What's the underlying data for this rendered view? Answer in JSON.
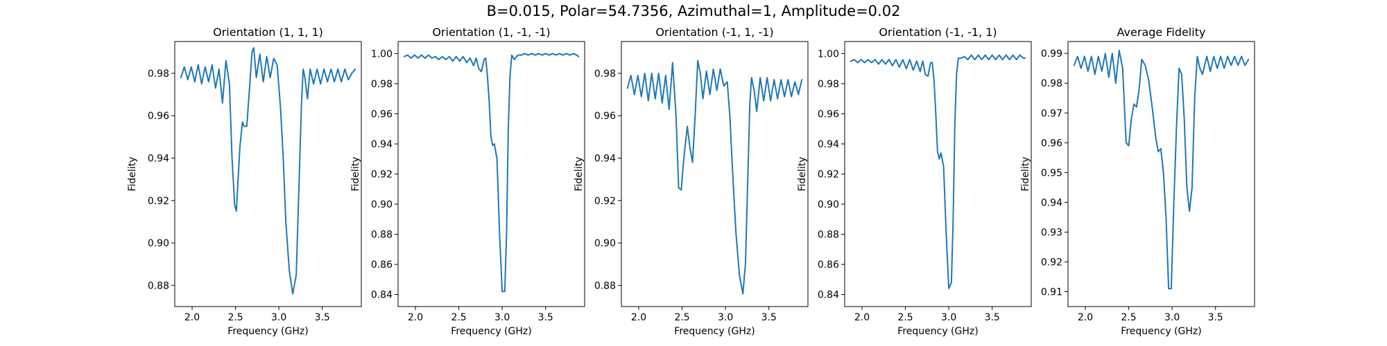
{
  "figure": {
    "suptitle": "B=0.015, Polar=54.7356, Azimuthal=1, Amplitude=0.02"
  },
  "chart_data": [
    {
      "type": "line",
      "title": "Orientation (1, 1, 1)",
      "xlabel": "Frequency (GHz)",
      "ylabel": "Fidelity",
      "xlim": [
        1.8,
        3.95
      ],
      "ylim": [
        0.87,
        0.995
      ],
      "xticks": [
        "2.0",
        "2.5",
        "3.0",
        "3.5"
      ],
      "yticks": [
        "0.88",
        "0.90",
        "0.92",
        "0.94",
        "0.96",
        "0.98"
      ],
      "grid": false,
      "series": [
        {
          "color": "#1f77b4",
          "x": [
            1.87,
            1.91,
            1.95,
            1.99,
            2.03,
            2.07,
            2.11,
            2.15,
            2.19,
            2.23,
            2.27,
            2.31,
            2.35,
            2.39,
            2.43,
            2.46,
            2.49,
            2.51,
            2.55,
            2.58,
            2.6,
            2.63,
            2.66,
            2.69,
            2.71,
            2.74,
            2.78,
            2.82,
            2.86,
            2.9,
            2.94,
            2.98,
            3.02,
            3.05,
            3.08,
            3.12,
            3.16,
            3.2,
            3.23,
            3.26,
            3.28,
            3.3,
            3.33,
            3.36,
            3.4,
            3.44,
            3.48,
            3.52,
            3.56,
            3.6,
            3.64,
            3.68,
            3.72,
            3.76,
            3.8,
            3.84,
            3.88
          ],
          "y": [
            0.978,
            0.983,
            0.977,
            0.983,
            0.976,
            0.984,
            0.975,
            0.983,
            0.976,
            0.984,
            0.973,
            0.982,
            0.966,
            0.986,
            0.975,
            0.94,
            0.918,
            0.915,
            0.945,
            0.957,
            0.955,
            0.955,
            0.972,
            0.99,
            0.992,
            0.978,
            0.989,
            0.976,
            0.988,
            0.978,
            0.987,
            0.984,
            0.963,
            0.94,
            0.91,
            0.887,
            0.876,
            0.885,
            0.925,
            0.965,
            0.982,
            0.978,
            0.968,
            0.982,
            0.975,
            0.982,
            0.975,
            0.982,
            0.976,
            0.982,
            0.976,
            0.982,
            0.976,
            0.982,
            0.977,
            0.98,
            0.982
          ]
        }
      ]
    },
    {
      "type": "line",
      "title": "Orientation (1, -1, -1)",
      "xlabel": "Frequency (GHz)",
      "ylabel": "Fidelity",
      "xlim": [
        1.8,
        3.95
      ],
      "ylim": [
        0.832,
        1.008
      ],
      "xticks": [
        "2.0",
        "2.5",
        "3.0",
        "3.5"
      ],
      "yticks": [
        "0.84",
        "0.86",
        "0.88",
        "0.90",
        "0.92",
        "0.94",
        "0.96",
        "0.98",
        "1.00"
      ],
      "grid": false,
      "series": [
        {
          "color": "#1f77b4",
          "x": [
            1.87,
            1.91,
            1.95,
            1.99,
            2.03,
            2.07,
            2.11,
            2.15,
            2.19,
            2.23,
            2.27,
            2.31,
            2.35,
            2.39,
            2.43,
            2.47,
            2.51,
            2.55,
            2.59,
            2.63,
            2.67,
            2.7,
            2.73,
            2.76,
            2.79,
            2.81,
            2.83,
            2.85,
            2.87,
            2.89,
            2.91,
            2.94,
            2.97,
            3.0,
            3.03,
            3.05,
            3.07,
            3.09,
            3.11,
            3.14,
            3.18,
            3.22,
            3.26,
            3.3,
            3.34,
            3.38,
            3.42,
            3.46,
            3.5,
            3.54,
            3.58,
            3.62,
            3.66,
            3.7,
            3.74,
            3.78,
            3.82,
            3.86,
            3.88
          ],
          "y": [
            0.998,
            0.999,
            0.997,
            0.999,
            0.997,
            0.999,
            0.997,
            0.999,
            0.997,
            0.998,
            0.996,
            0.998,
            0.996,
            0.998,
            0.995,
            0.998,
            0.995,
            0.998,
            0.994,
            0.997,
            0.992,
            0.997,
            0.99,
            0.988,
            0.996,
            0.997,
            0.985,
            0.968,
            0.945,
            0.939,
            0.94,
            0.93,
            0.88,
            0.842,
            0.842,
            0.88,
            0.95,
            0.985,
            0.999,
            0.996,
            0.999,
            0.999,
            1.0,
            0.999,
            1.0,
            0.999,
            1.0,
            0.999,
            1.0,
            0.999,
            1.0,
            0.999,
            1.0,
            0.999,
            1.0,
            0.999,
            1.0,
            0.999,
            0.998
          ]
        }
      ]
    },
    {
      "type": "line",
      "title": "Orientation (-1, 1, -1)",
      "xlabel": "Frequency (GHz)",
      "ylabel": "Fidelity",
      "xlim": [
        1.8,
        3.95
      ],
      "ylim": [
        0.87,
        0.995
      ],
      "xticks": [
        "2.0",
        "2.5",
        "3.0",
        "3.5"
      ],
      "yticks": [
        "0.88",
        "0.90",
        "0.92",
        "0.94",
        "0.96",
        "0.98"
      ],
      "grid": false,
      "series": [
        {
          "color": "#1f77b4",
          "x": [
            1.87,
            1.91,
            1.95,
            1.99,
            2.03,
            2.07,
            2.11,
            2.15,
            2.19,
            2.23,
            2.27,
            2.31,
            2.35,
            2.39,
            2.43,
            2.46,
            2.49,
            2.52,
            2.56,
            2.59,
            2.62,
            2.65,
            2.68,
            2.71,
            2.74,
            2.78,
            2.82,
            2.86,
            2.9,
            2.94,
            2.98,
            3.02,
            3.05,
            3.08,
            3.12,
            3.16,
            3.2,
            3.23,
            3.26,
            3.28,
            3.3,
            3.33,
            3.36,
            3.4,
            3.44,
            3.48,
            3.52,
            3.56,
            3.6,
            3.64,
            3.68,
            3.72,
            3.76,
            3.8,
            3.84,
            3.88
          ],
          "y": [
            0.973,
            0.979,
            0.97,
            0.979,
            0.969,
            0.98,
            0.967,
            0.98,
            0.968,
            0.98,
            0.966,
            0.979,
            0.963,
            0.985,
            0.96,
            0.926,
            0.925,
            0.94,
            0.955,
            0.945,
            0.938,
            0.96,
            0.986,
            0.98,
            0.968,
            0.981,
            0.97,
            0.982,
            0.972,
            0.982,
            0.974,
            0.976,
            0.96,
            0.935,
            0.905,
            0.885,
            0.876,
            0.89,
            0.935,
            0.965,
            0.978,
            0.972,
            0.962,
            0.978,
            0.967,
            0.978,
            0.967,
            0.977,
            0.968,
            0.977,
            0.969,
            0.977,
            0.969,
            0.976,
            0.97,
            0.977
          ]
        }
      ]
    },
    {
      "type": "line",
      "title": "Orientation (-1, -1, 1)",
      "xlabel": "Frequency (GHz)",
      "ylabel": "Fidelity",
      "xlim": [
        1.8,
        3.95
      ],
      "ylim": [
        0.832,
        1.008
      ],
      "xticks": [
        "2.0",
        "2.5",
        "3.0",
        "3.5"
      ],
      "yticks": [
        "0.84",
        "0.86",
        "0.88",
        "0.90",
        "0.92",
        "0.94",
        "0.96",
        "0.98",
        "1.00"
      ],
      "grid": false,
      "series": [
        {
          "color": "#1f77b4",
          "x": [
            1.87,
            1.91,
            1.95,
            1.99,
            2.03,
            2.07,
            2.11,
            2.15,
            2.19,
            2.23,
            2.27,
            2.31,
            2.35,
            2.39,
            2.43,
            2.47,
            2.51,
            2.55,
            2.59,
            2.63,
            2.67,
            2.7,
            2.73,
            2.76,
            2.79,
            2.81,
            2.83,
            2.85,
            2.87,
            2.89,
            2.91,
            2.94,
            2.97,
            3.0,
            3.03,
            3.05,
            3.07,
            3.09,
            3.11,
            3.14,
            3.18,
            3.22,
            3.26,
            3.3,
            3.34,
            3.38,
            3.42,
            3.46,
            3.5,
            3.54,
            3.58,
            3.62,
            3.66,
            3.7,
            3.74,
            3.78,
            3.82,
            3.86,
            3.88
          ],
          "y": [
            0.995,
            0.996,
            0.994,
            0.996,
            0.994,
            0.996,
            0.994,
            0.996,
            0.993,
            0.996,
            0.993,
            0.996,
            0.992,
            0.996,
            0.991,
            0.996,
            0.99,
            0.996,
            0.989,
            0.995,
            0.988,
            0.995,
            0.986,
            0.985,
            0.994,
            0.994,
            0.982,
            0.96,
            0.935,
            0.93,
            0.934,
            0.925,
            0.88,
            0.844,
            0.848,
            0.89,
            0.955,
            0.987,
            0.997,
            0.997,
            0.998,
            0.996,
            0.999,
            0.996,
            0.999,
            0.996,
            0.999,
            0.996,
            0.999,
            0.996,
            0.999,
            0.996,
            0.999,
            0.996,
            0.999,
            0.996,
            0.999,
            0.997,
            0.997
          ]
        }
      ]
    },
    {
      "type": "line",
      "title": "Average Fidelity",
      "xlabel": "Frequency (GHz)",
      "ylabel": "Fidelity",
      "xlim": [
        1.8,
        3.95
      ],
      "ylim": [
        0.905,
        0.994
      ],
      "xticks": [
        "2.0",
        "2.5",
        "3.0",
        "3.5"
      ],
      "yticks": [
        "0.91",
        "0.92",
        "0.93",
        "0.94",
        "0.95",
        "0.96",
        "0.97",
        "0.98",
        "0.99"
      ],
      "grid": false,
      "series": [
        {
          "color": "#1f77b4",
          "x": [
            1.87,
            1.91,
            1.95,
            1.99,
            2.03,
            2.07,
            2.11,
            2.15,
            2.19,
            2.23,
            2.27,
            2.31,
            2.35,
            2.39,
            2.43,
            2.47,
            2.5,
            2.53,
            2.56,
            2.59,
            2.62,
            2.65,
            2.69,
            2.73,
            2.77,
            2.81,
            2.84,
            2.87,
            2.9,
            2.93,
            2.96,
            2.99,
            3.02,
            3.05,
            3.08,
            3.11,
            3.14,
            3.17,
            3.2,
            3.23,
            3.26,
            3.29,
            3.32,
            3.35,
            3.4,
            3.44,
            3.48,
            3.52,
            3.56,
            3.6,
            3.64,
            3.68,
            3.72,
            3.76,
            3.8,
            3.84,
            3.88
          ],
          "y": [
            0.986,
            0.989,
            0.985,
            0.989,
            0.984,
            0.989,
            0.983,
            0.989,
            0.984,
            0.99,
            0.982,
            0.99,
            0.98,
            0.991,
            0.985,
            0.96,
            0.959,
            0.968,
            0.973,
            0.972,
            0.978,
            0.988,
            0.986,
            0.981,
            0.972,
            0.962,
            0.957,
            0.958,
            0.95,
            0.935,
            0.911,
            0.911,
            0.94,
            0.965,
            0.985,
            0.983,
            0.968,
            0.945,
            0.937,
            0.945,
            0.975,
            0.989,
            0.985,
            0.983,
            0.989,
            0.984,
            0.989,
            0.985,
            0.989,
            0.985,
            0.989,
            0.986,
            0.989,
            0.986,
            0.989,
            0.986,
            0.988
          ]
        }
      ]
    }
  ]
}
